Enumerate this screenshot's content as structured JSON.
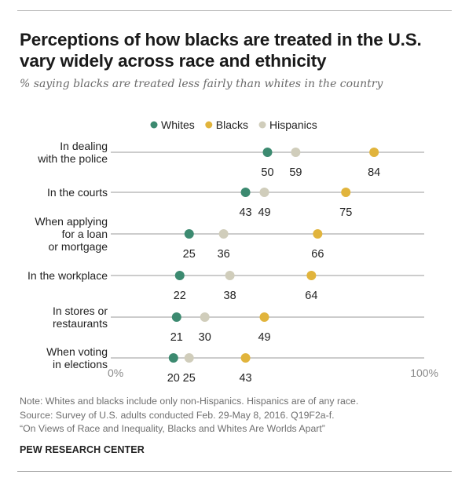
{
  "header": {
    "title": "Perceptions of how blacks are treated in the U.S. vary widely across race and ethnicity",
    "subtitle": "% saying blacks are treated less fairly than whites in the country"
  },
  "footer": {
    "note": "Note: Whites and blacks include only non-Hispanics. Hispanics are of any race.",
    "source": "Source: Survey of U.S. adults conducted Feb. 29-May 8, 2016. Q19F2a-f.",
    "report": "“On Views of Race and Inequality, Blacks and Whites Are Worlds Apart”",
    "brand": "PEW RESEARCH CENTER"
  },
  "chart_data": {
    "type": "scatter",
    "variant": "dot-plot",
    "title": "Perceptions of how blacks are treated in the U.S. vary widely across race and ethnicity",
    "subtitle": "% saying blacks are treated less fairly than whites in the country",
    "xlim": [
      0,
      100
    ],
    "x_tick_labels": [
      "0%",
      "100%"
    ],
    "legend_position": "top-center",
    "grid": false,
    "categories": [
      [
        "In dealing",
        "with the police"
      ],
      [
        "In the courts"
      ],
      [
        "When applying",
        "for a loan",
        "or mortgage"
      ],
      [
        "In the workplace"
      ],
      [
        "In stores or",
        "restaurants"
      ],
      [
        "When voting",
        "in elections"
      ]
    ],
    "series": [
      {
        "name": "Whites",
        "color": "#3c8a70",
        "values": [
          50,
          43,
          25,
          22,
          21,
          20
        ]
      },
      {
        "name": "Blacks",
        "color": "#e1b43c",
        "values": [
          84,
          75,
          66,
          64,
          49,
          43
        ]
      },
      {
        "name": "Hispanics",
        "color": "#d0cdbb",
        "values": [
          59,
          49,
          36,
          38,
          30,
          25
        ]
      }
    ]
  }
}
